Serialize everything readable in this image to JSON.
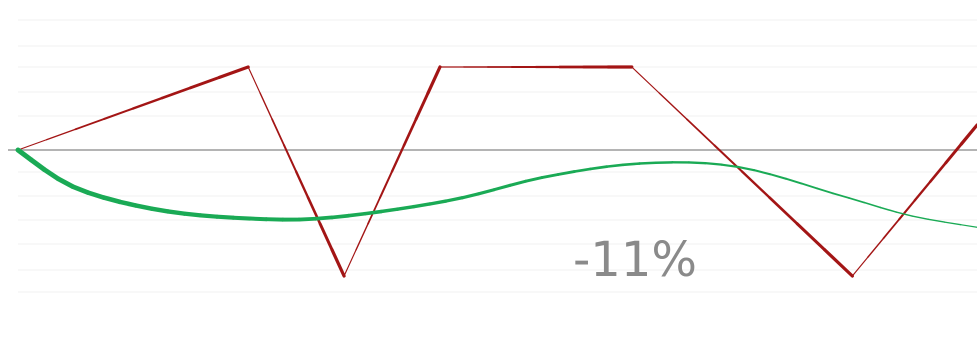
{
  "chart_data": {
    "type": "line",
    "title": "",
    "xlabel": "",
    "ylabel": "",
    "grid": true,
    "baseline": 0,
    "ylim": [
      -1.6,
      1.6
    ],
    "xlim": [
      0,
      10
    ],
    "annotation": "-11%",
    "series": [
      {
        "color": "#a31515",
        "style": "polyline",
        "x": [
          0,
          2.4,
          3.4,
          4.4,
          6.4,
          8.7,
          10
        ],
        "values": [
          0,
          1,
          -1.5,
          1,
          1,
          -1.5,
          0.3
        ]
      },
      {
        "color": "#1aaa55",
        "style": "smooth",
        "x": [
          0,
          0.6,
          1.5,
          2.5,
          3.3,
          4.5,
          5.5,
          6.5,
          7.5,
          8.6,
          9.3,
          10
        ],
        "values": [
          0,
          -0.45,
          -0.72,
          -0.82,
          -0.8,
          -0.6,
          -0.32,
          -0.16,
          -0.2,
          -0.55,
          -0.78,
          -0.92
        ]
      }
    ]
  }
}
